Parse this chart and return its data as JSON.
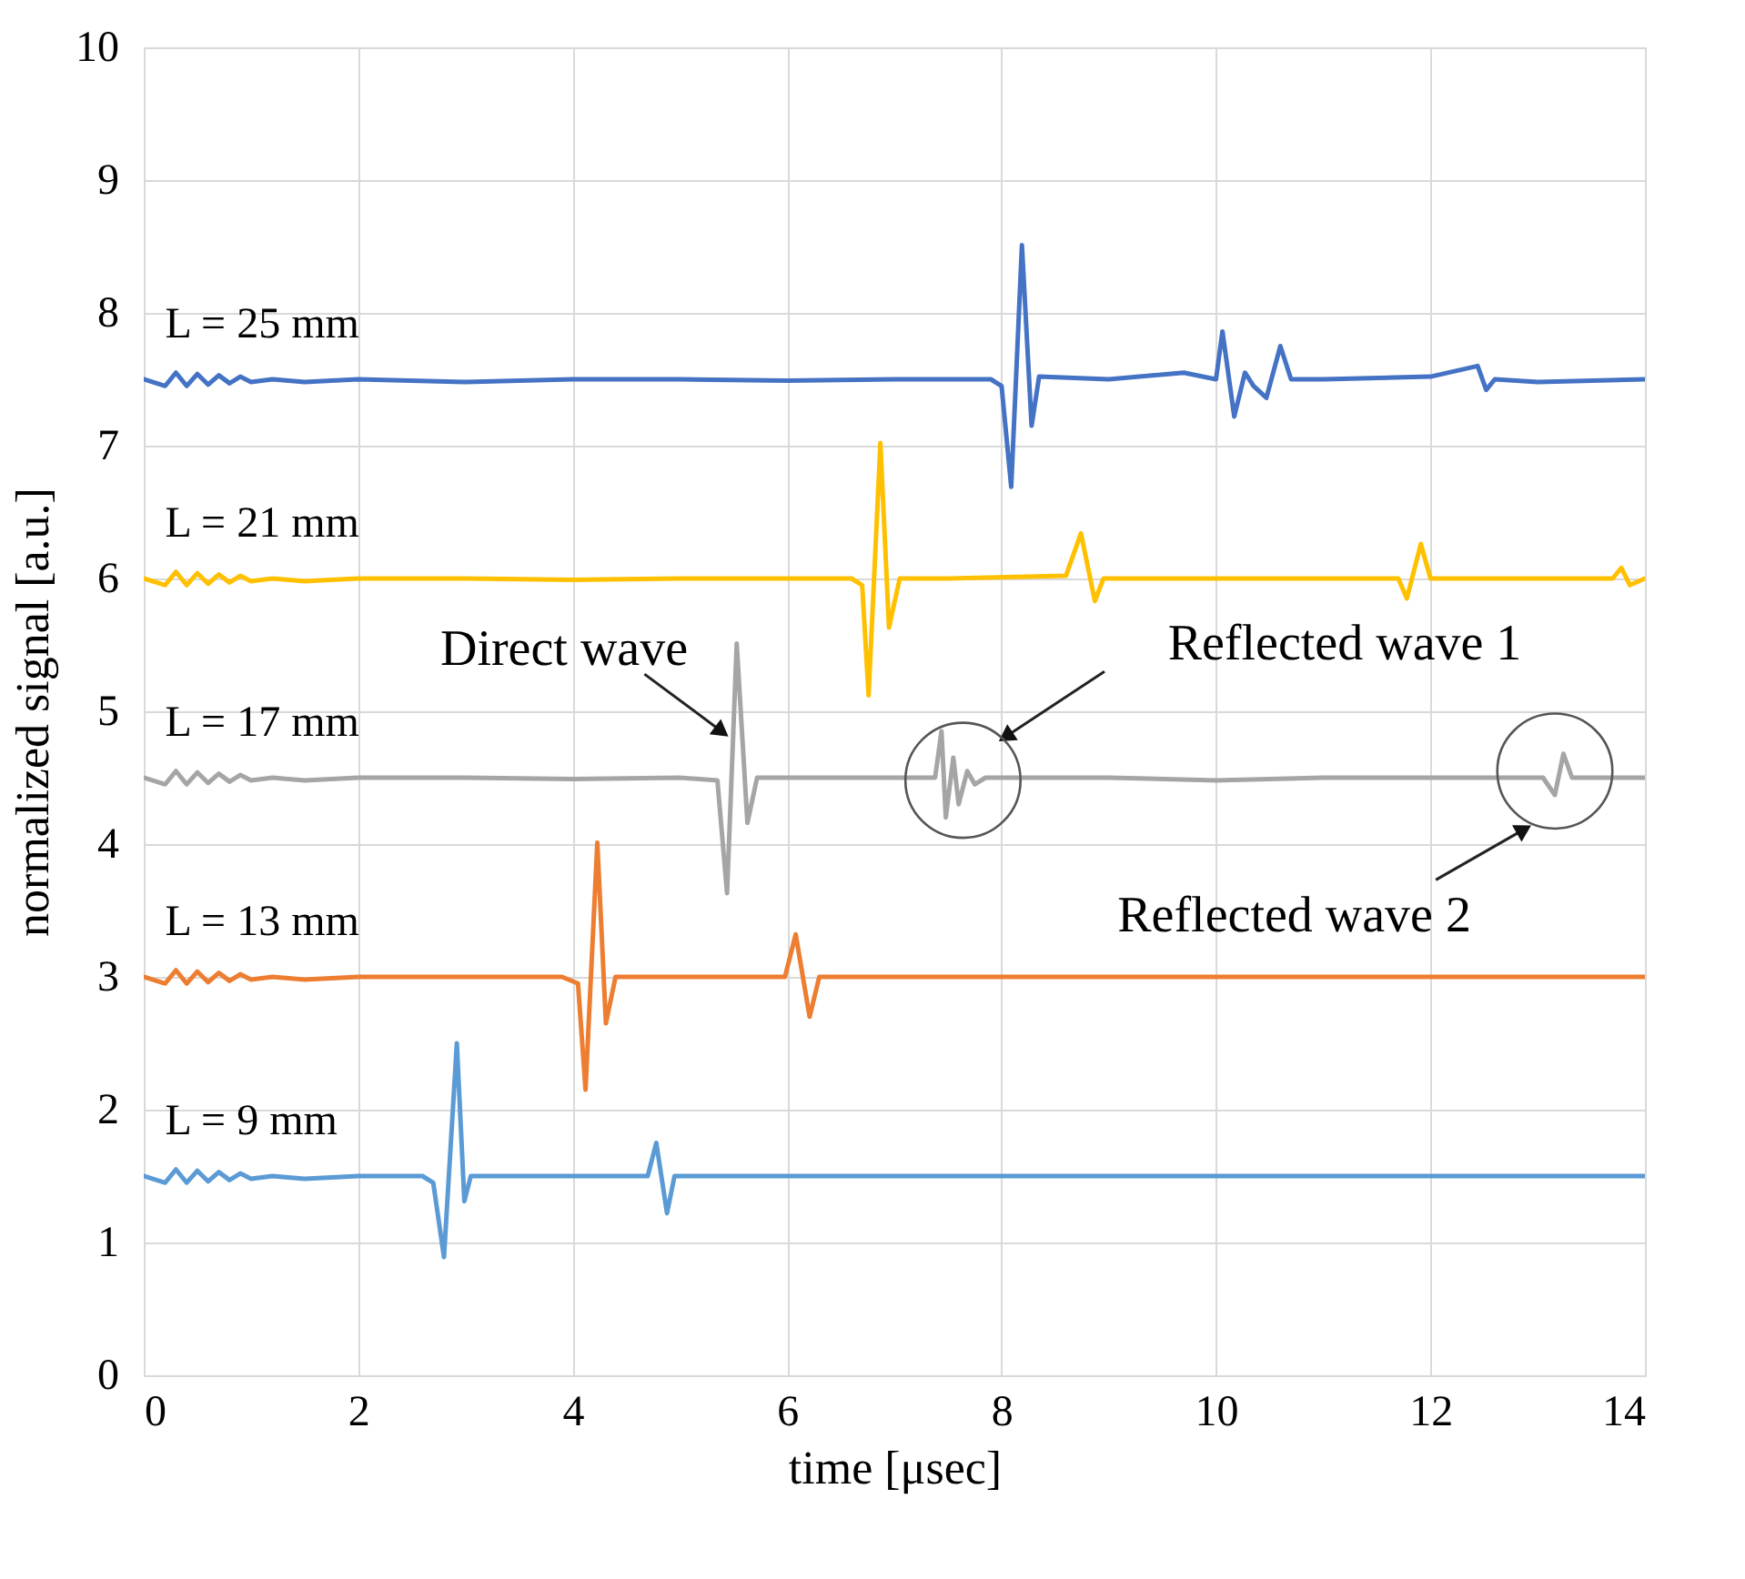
{
  "chart_data": {
    "type": "line",
    "xlabel": "time [μsec]",
    "ylabel": "normalized signal [a.u.]",
    "xlim": [
      0,
      14
    ],
    "xticks": [
      0,
      2,
      4,
      6,
      8,
      10,
      12,
      14
    ],
    "ylim": [
      0,
      10
    ],
    "yticks": [
      0,
      1,
      2,
      3,
      4,
      5,
      6,
      7,
      8,
      9,
      10
    ],
    "grid": true,
    "line_style": "solid",
    "marker": "none",
    "series": [
      {
        "name": "L = 25 mm",
        "color": "#4472c4",
        "x": [
          0,
          0.2,
          0.3,
          0.4,
          0.5,
          0.6,
          0.7,
          0.8,
          0.9,
          1.0,
          1.2,
          1.5,
          2.0,
          3.0,
          4.0,
          5.0,
          6.0,
          7.0,
          7.9,
          8.0,
          8.09,
          8.19,
          8.28,
          8.35,
          9.0,
          9.7,
          10.0,
          10.06,
          10.17,
          10.27,
          10.35,
          10.47,
          10.6,
          10.7,
          11.0,
          12.0,
          12.44,
          12.52,
          12.6,
          13.0,
          14.0
        ],
        "values": [
          7.5,
          7.45,
          7.55,
          7.45,
          7.54,
          7.46,
          7.53,
          7.47,
          7.52,
          7.48,
          7.5,
          7.48,
          7.5,
          7.48,
          7.5,
          7.5,
          7.49,
          7.5,
          7.5,
          7.45,
          6.69,
          8.51,
          7.15,
          7.52,
          7.5,
          7.55,
          7.5,
          7.86,
          7.22,
          7.55,
          7.45,
          7.36,
          7.75,
          7.5,
          7.5,
          7.52,
          7.6,
          7.42,
          7.5,
          7.48,
          7.5
        ]
      },
      {
        "name": "L = 21 mm",
        "color": "#ffc000",
        "x": [
          0,
          0.2,
          0.3,
          0.4,
          0.5,
          0.6,
          0.7,
          0.8,
          0.9,
          1.0,
          1.2,
          1.5,
          2.0,
          3.0,
          4.0,
          5.0,
          6.0,
          6.6,
          6.7,
          6.76,
          6.87,
          6.95,
          7.05,
          7.5,
          8.6,
          8.74,
          8.87,
          8.95,
          10.0,
          11.7,
          11.78,
          11.91,
          12.0,
          13.0,
          13.7,
          13.78,
          13.86,
          14.0
        ],
        "values": [
          6.0,
          5.95,
          6.05,
          5.95,
          6.04,
          5.96,
          6.03,
          5.97,
          6.02,
          5.98,
          6.0,
          5.98,
          6.0,
          6.0,
          5.99,
          6.0,
          6.0,
          6.0,
          5.95,
          5.12,
          7.02,
          5.63,
          6.0,
          6.0,
          6.02,
          6.34,
          5.83,
          6.0,
          6.0,
          6.0,
          5.85,
          6.26,
          6.0,
          6.0,
          6.0,
          6.08,
          5.95,
          6.0
        ]
      },
      {
        "name": "L = 17 mm",
        "color": "#a5a5a5",
        "x": [
          0,
          0.2,
          0.3,
          0.4,
          0.5,
          0.6,
          0.7,
          0.8,
          0.9,
          1.0,
          1.2,
          1.5,
          2.0,
          3.0,
          4.0,
          5.0,
          5.35,
          5.44,
          5.53,
          5.63,
          5.72,
          6.0,
          7.0,
          7.38,
          7.44,
          7.48,
          7.55,
          7.6,
          7.68,
          7.75,
          7.85,
          9.0,
          10.0,
          11.0,
          12.0,
          13.05,
          13.16,
          13.24,
          13.32,
          14.0
        ],
        "values": [
          4.5,
          4.45,
          4.55,
          4.45,
          4.54,
          4.46,
          4.53,
          4.47,
          4.52,
          4.48,
          4.5,
          4.48,
          4.5,
          4.5,
          4.49,
          4.5,
          4.48,
          3.63,
          5.51,
          4.16,
          4.5,
          4.5,
          4.5,
          4.5,
          4.85,
          4.2,
          4.65,
          4.3,
          4.55,
          4.45,
          4.5,
          4.5,
          4.48,
          4.5,
          4.5,
          4.5,
          4.37,
          4.68,
          4.5,
          4.5
        ]
      },
      {
        "name": "L = 13 mm",
        "color": "#ed7d31",
        "x": [
          0,
          0.2,
          0.3,
          0.4,
          0.5,
          0.6,
          0.7,
          0.8,
          0.9,
          1.0,
          1.2,
          1.5,
          2.0,
          3.0,
          3.9,
          4.05,
          4.12,
          4.23,
          4.31,
          4.4,
          5.0,
          5.98,
          6.08,
          6.21,
          6.3,
          7.0,
          8.0,
          10.0,
          12.0,
          14.0
        ],
        "values": [
          3.0,
          2.95,
          3.05,
          2.95,
          3.04,
          2.96,
          3.03,
          2.97,
          3.02,
          2.98,
          3.0,
          2.98,
          3.0,
          3.0,
          3.0,
          2.95,
          2.15,
          4.01,
          2.65,
          3.0,
          3.0,
          3.0,
          3.32,
          2.7,
          3.0,
          3.0,
          3.0,
          3.0,
          3.0,
          3.0
        ]
      },
      {
        "name": "L = 9 mm",
        "color": "#5b9bd5",
        "x": [
          0,
          0.2,
          0.3,
          0.4,
          0.5,
          0.6,
          0.7,
          0.8,
          0.9,
          1.0,
          1.2,
          1.5,
          2.0,
          2.6,
          2.7,
          2.8,
          2.92,
          2.99,
          3.05,
          4.0,
          4.7,
          4.78,
          4.88,
          4.95,
          6.0,
          8.0,
          10.0,
          12.0,
          14.0
        ],
        "values": [
          1.5,
          1.45,
          1.55,
          1.45,
          1.54,
          1.46,
          1.53,
          1.47,
          1.52,
          1.48,
          1.5,
          1.48,
          1.5,
          1.5,
          1.45,
          0.89,
          2.5,
          1.31,
          1.5,
          1.5,
          1.5,
          1.75,
          1.22,
          1.5,
          1.5,
          1.5,
          1.5,
          1.5,
          1.5
        ]
      }
    ],
    "annotations": [
      {
        "text": "Direct wave",
        "x": 5.37,
        "y": 4.86
      },
      {
        "text": "Reflected wave 1",
        "x": 8.06,
        "y": 4.82
      },
      {
        "text": "Reflected wave 2",
        "x": 12.85,
        "y": 4.1
      }
    ]
  }
}
